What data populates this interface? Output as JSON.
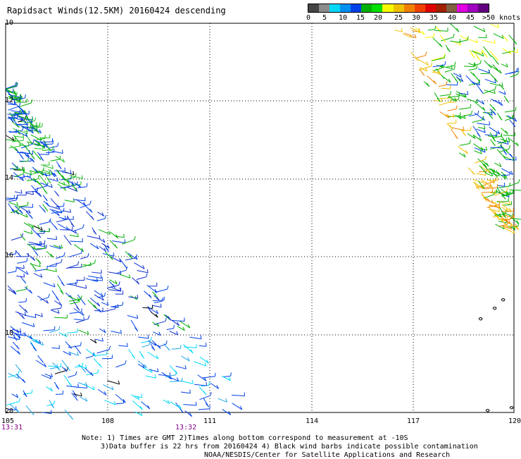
{
  "title": "Rapidsact Winds(12.5KM) 20160424 descending",
  "colorbar": {
    "colors": [
      "#444444",
      "#8c8c8c",
      "#00d8f8",
      "#0090f0",
      "#0040e8",
      "#00b000",
      "#00e000",
      "#f8f800",
      "#f0c000",
      "#f08000",
      "#f04000",
      "#e00000",
      "#a02000",
      "#806040",
      "#e000e0",
      "#a000c0",
      "#600080"
    ],
    "labels": [
      "0",
      "5",
      "10",
      "15",
      "20",
      "25",
      "30",
      "35",
      "40",
      "45",
      ">50 knots"
    ]
  },
  "axes": {
    "lat_labels": [
      "10",
      "12",
      "14",
      "16",
      "18",
      "20"
    ],
    "lon_labels": [
      "105",
      "108",
      "111",
      "114",
      "117",
      "120"
    ],
    "lat_values": [
      -10,
      -12,
      -14,
      -16,
      -18,
      -20
    ],
    "lon_values": [
      105,
      108,
      111,
      114,
      117,
      120
    ]
  },
  "times": [
    "13:31",
    "13:32"
  ],
  "notes": [
    "Note: 1) Times are GMT 2)Times along bottom correspond to measurement at -10S",
    "3)Data buffer is 22 hrs from 20160424 4) Black wind barbs indicate possible contamination",
    "NOAA/NESDIS/Center for Satellite Applications and Research"
  ]
}
